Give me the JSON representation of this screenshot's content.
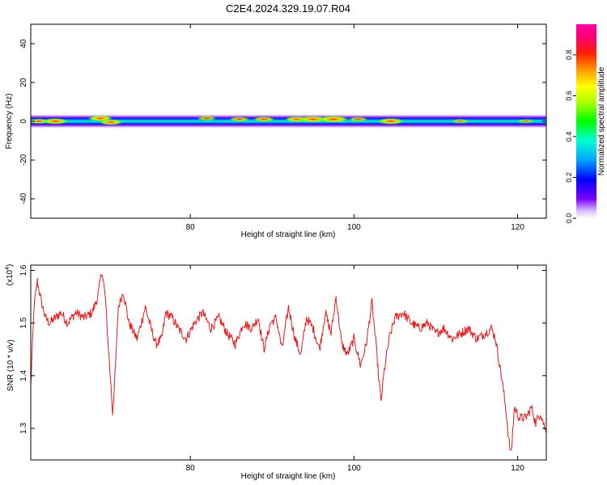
{
  "title": "C2E4.2024.329.19.07.R04",
  "chart_data": [
    {
      "type": "heatmap",
      "xlabel": "Height of straight line (km)",
      "ylabel": "Frequency (Hz)",
      "xlim": [
        60.5,
        123.5
      ],
      "ylim": [
        -50,
        50
      ],
      "xticks": [
        "80",
        "100",
        "120"
      ],
      "xtick_values": [
        80,
        100,
        120
      ],
      "yticks": [
        "40",
        "20",
        "0",
        "-20",
        "-40"
      ],
      "ytick_values": [
        40,
        20,
        0,
        -20,
        -40
      ],
      "colorbar": {
        "label": "Normalized spectral amplitude",
        "ticks": [
          "0.0",
          "0.2",
          "0.4",
          "0.6",
          "0.8"
        ],
        "tick_values": [
          0.0,
          0.2,
          0.4,
          0.6,
          0.8
        ],
        "range": [
          0,
          0.95
        ]
      },
      "band": {
        "frequency_center": 0,
        "frequency_halfwidth": 4,
        "height_start": 60.5,
        "height_end": 123.5
      },
      "hotspots": [
        {
          "height": 61.5,
          "frequency": 0,
          "amplitude": 0.55
        },
        {
          "height": 63.5,
          "frequency": 0,
          "amplitude": 0.75
        },
        {
          "height": 69.0,
          "frequency": 1.5,
          "amplitude": 0.7
        },
        {
          "height": 70.3,
          "frequency": -0.5,
          "amplitude": 0.65
        },
        {
          "height": 82.0,
          "frequency": 1.5,
          "amplitude": 0.45
        },
        {
          "height": 86.0,
          "frequency": 1.0,
          "amplitude": 0.5
        },
        {
          "height": 89.0,
          "frequency": 1.0,
          "amplitude": 0.55
        },
        {
          "height": 93.0,
          "frequency": 1.0,
          "amplitude": 0.65
        },
        {
          "height": 95.0,
          "frequency": 1.0,
          "amplitude": 0.85
        },
        {
          "height": 97.5,
          "frequency": 1.0,
          "amplitude": 0.95
        },
        {
          "height": 100.5,
          "frequency": 1.0,
          "amplitude": 0.45
        },
        {
          "height": 104.5,
          "frequency": 0,
          "amplitude": 0.8
        },
        {
          "height": 113.0,
          "frequency": 0,
          "amplitude": 0.4
        },
        {
          "height": 121.0,
          "frequency": 0,
          "amplitude": 0.35
        }
      ]
    },
    {
      "type": "line",
      "xlabel": "Height of straight line (km)",
      "ylabel": "SNR (10 * v/v)",
      "y_multiplier": "(x10",
      "y_multiplier_exp": "4",
      "y_multiplier_close": ")",
      "xlim": [
        60.5,
        123.5
      ],
      "ylim": [
        1.24,
        1.61
      ],
      "xticks": [
        "80",
        "100",
        "120"
      ],
      "xtick_values": [
        80,
        100,
        120
      ],
      "yticks": [
        "1.6",
        "1.5",
        "1.4",
        "1.3"
      ],
      "ytick_values": [
        1.6,
        1.5,
        1.4,
        1.3
      ],
      "series": [
        {
          "color": "#e8191a",
          "x": [
            60.5,
            60.9,
            61.3,
            61.8,
            62.3,
            62.8,
            63.5,
            64.2,
            65.0,
            66.0,
            67.0,
            68.0,
            68.7,
            69.2,
            69.6,
            70.0,
            70.3,
            70.5,
            70.8,
            71.2,
            71.8,
            72.5,
            73.5,
            74.5,
            75.2,
            75.8,
            76.5,
            77.0,
            77.8,
            78.5,
            79.5,
            80.5,
            81.5,
            82.5,
            83.5,
            84.5,
            85.5,
            86.5,
            87.5,
            88.3,
            89.0,
            89.8,
            90.5,
            91.2,
            92.0,
            92.8,
            93.5,
            94.2,
            95.0,
            95.8,
            96.5,
            97.2,
            97.8,
            98.5,
            99.2,
            100.0,
            100.8,
            101.5,
            102.2,
            102.8,
            103.0,
            103.3,
            103.7,
            104.3,
            105.0,
            106.0,
            107.0,
            108.0,
            109.0,
            110.0,
            111.0,
            112.0,
            113.0,
            114.0,
            115.0,
            116.0,
            116.8,
            117.3,
            117.8,
            118.2,
            118.6,
            118.9,
            119.2,
            119.6,
            120.2,
            121.0,
            121.7,
            122.2,
            122.8,
            123.5
          ],
          "y": [
            1.38,
            1.53,
            1.58,
            1.54,
            1.51,
            1.5,
            1.51,
            1.52,
            1.5,
            1.52,
            1.51,
            1.52,
            1.55,
            1.6,
            1.55,
            1.45,
            1.38,
            1.33,
            1.4,
            1.53,
            1.56,
            1.5,
            1.47,
            1.53,
            1.49,
            1.46,
            1.47,
            1.52,
            1.51,
            1.49,
            1.47,
            1.5,
            1.52,
            1.49,
            1.51,
            1.48,
            1.46,
            1.5,
            1.49,
            1.51,
            1.45,
            1.5,
            1.51,
            1.45,
            1.53,
            1.47,
            1.44,
            1.51,
            1.49,
            1.45,
            1.52,
            1.48,
            1.55,
            1.46,
            1.44,
            1.47,
            1.42,
            1.46,
            1.54,
            1.44,
            1.4,
            1.35,
            1.41,
            1.47,
            1.51,
            1.52,
            1.5,
            1.49,
            1.5,
            1.48,
            1.49,
            1.47,
            1.48,
            1.49,
            1.47,
            1.48,
            1.49,
            1.47,
            1.42,
            1.38,
            1.33,
            1.28,
            1.25,
            1.34,
            1.32,
            1.32,
            1.34,
            1.31,
            1.33,
            1.29
          ]
        }
      ]
    }
  ]
}
